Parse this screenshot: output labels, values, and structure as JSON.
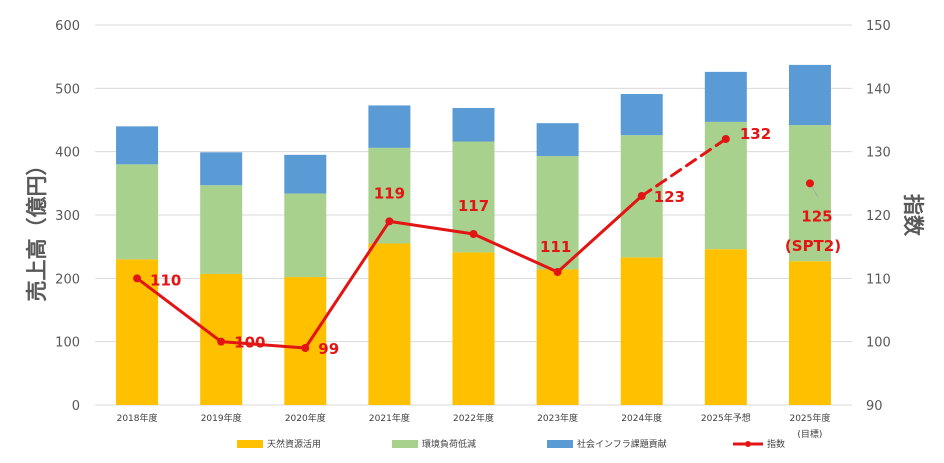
{
  "chart_data": {
    "type": "bar",
    "stacked": true,
    "categories": [
      "2018年度",
      "2019年度",
      "2020年度",
      "2021年度",
      "2022年度",
      "2023年度",
      "2024年度",
      "2025年予想",
      "2025年度"
    ],
    "category_sublabels": [
      "",
      "",
      "",
      "",
      "",
      "",
      "",
      "",
      "(目標)"
    ],
    "ylabel": "売上高（億円）",
    "y2label": "指数",
    "ylim": [
      0,
      600
    ],
    "yticks": [
      0,
      100,
      200,
      300,
      400,
      500,
      600
    ],
    "y2lim": [
      90,
      150
    ],
    "y2ticks": [
      90,
      100,
      110,
      120,
      130,
      140,
      150
    ],
    "grid": true,
    "legend_position": "bottom",
    "series": [
      {
        "name": "天然資源活用",
        "type": "bar",
        "axis": "left",
        "color": "#FFC000",
        "values": [
          230,
          207,
          202,
          255,
          241,
          214,
          233,
          246,
          227
        ]
      },
      {
        "name": "環境負荷低減",
        "type": "bar",
        "axis": "left",
        "color": "#A9D18E",
        "values": [
          150,
          140,
          132,
          151,
          175,
          179,
          193,
          201,
          215
        ]
      },
      {
        "name": "社会インフラ課題貢献",
        "type": "bar",
        "axis": "left",
        "color": "#5B9BD5",
        "values": [
          60,
          52,
          61,
          67,
          53,
          52,
          65,
          79,
          95
        ]
      },
      {
        "name": "指数",
        "type": "line",
        "axis": "right",
        "color": "#E31414",
        "values": [
          110,
          100,
          99,
          119,
          117,
          111,
          123,
          132,
          null
        ],
        "dashed_from_index": 6
      },
      {
        "name": "指数 目標",
        "type": "point",
        "axis": "right",
        "color": "#E31414",
        "values": [
          null,
          null,
          null,
          null,
          null,
          null,
          null,
          null,
          125
        ]
      }
    ],
    "data_labels": [
      "110",
      "100",
      "99",
      "119",
      "117",
      "111",
      "123",
      "132",
      "125"
    ],
    "target_note": "(SPT2)"
  }
}
